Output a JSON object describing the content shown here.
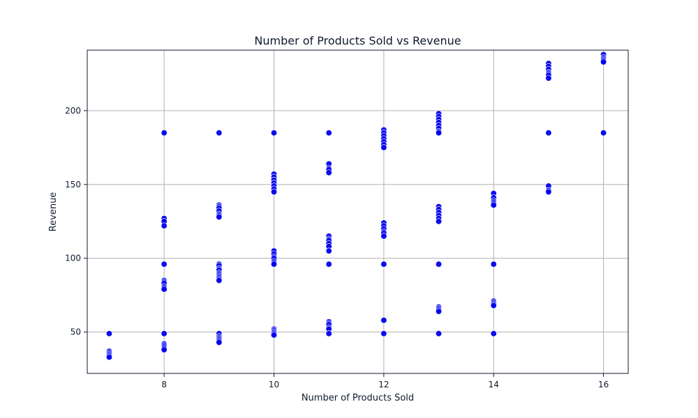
{
  "chart_data": {
    "type": "scatter",
    "title": "Number of Products Sold vs Revenue",
    "xlabel": "Number of Products Sold",
    "ylabel": "Revenue",
    "xlim": [
      6.6,
      16.45
    ],
    "ylim": [
      22,
      241
    ],
    "xticks": [
      8,
      10,
      12,
      14,
      16
    ],
    "yticks": [
      50,
      100,
      150,
      200
    ],
    "grid": true,
    "point_color": "#0000ee",
    "series": [
      {
        "name": "data",
        "points": [
          [
            7,
            49
          ],
          [
            7,
            37
          ],
          [
            7,
            36
          ],
          [
            7,
            35
          ],
          [
            7,
            34
          ],
          [
            7,
            33
          ],
          [
            8,
            185
          ],
          [
            8,
            127
          ],
          [
            8,
            125
          ],
          [
            8,
            122
          ],
          [
            8,
            96
          ],
          [
            8,
            85
          ],
          [
            8,
            84
          ],
          [
            8,
            83
          ],
          [
            8,
            81
          ],
          [
            8,
            80
          ],
          [
            8,
            79
          ],
          [
            8,
            49
          ],
          [
            8,
            42
          ],
          [
            8,
            41
          ],
          [
            8,
            40
          ],
          [
            8,
            39
          ],
          [
            8,
            38
          ],
          [
            9,
            185
          ],
          [
            9,
            136
          ],
          [
            9,
            135
          ],
          [
            9,
            134
          ],
          [
            9,
            132
          ],
          [
            9,
            130
          ],
          [
            9,
            129
          ],
          [
            9,
            128
          ],
          [
            9,
            96
          ],
          [
            9,
            95
          ],
          [
            9,
            93
          ],
          [
            9,
            92
          ],
          [
            9,
            90
          ],
          [
            9,
            89
          ],
          [
            9,
            88
          ],
          [
            9,
            87
          ],
          [
            9,
            86
          ],
          [
            9,
            85
          ],
          [
            9,
            49
          ],
          [
            9,
            47
          ],
          [
            9,
            46
          ],
          [
            9,
            45
          ],
          [
            9,
            44
          ],
          [
            9,
            43
          ],
          [
            10,
            185
          ],
          [
            10,
            157
          ],
          [
            10,
            155
          ],
          [
            10,
            153
          ],
          [
            10,
            151
          ],
          [
            10,
            149
          ],
          [
            10,
            147
          ],
          [
            10,
            145
          ],
          [
            10,
            105
          ],
          [
            10,
            103
          ],
          [
            10,
            101
          ],
          [
            10,
            100
          ],
          [
            10,
            98
          ],
          [
            10,
            97
          ],
          [
            10,
            96
          ],
          [
            10,
            52
          ],
          [
            10,
            51
          ],
          [
            10,
            50
          ],
          [
            10,
            49
          ],
          [
            10,
            48
          ],
          [
            11,
            185
          ],
          [
            11,
            164
          ],
          [
            11,
            161
          ],
          [
            11,
            160
          ],
          [
            11,
            158
          ],
          [
            11,
            115
          ],
          [
            11,
            113
          ],
          [
            11,
            112
          ],
          [
            11,
            110
          ],
          [
            11,
            108
          ],
          [
            11,
            105
          ],
          [
            11,
            96
          ],
          [
            11,
            57
          ],
          [
            11,
            56
          ],
          [
            11,
            55
          ],
          [
            11,
            53
          ],
          [
            11,
            52
          ],
          [
            11,
            49
          ],
          [
            12,
            187
          ],
          [
            12,
            185
          ],
          [
            12,
            183
          ],
          [
            12,
            181
          ],
          [
            12,
            179
          ],
          [
            12,
            177
          ],
          [
            12,
            175
          ],
          [
            12,
            124
          ],
          [
            12,
            122
          ],
          [
            12,
            120
          ],
          [
            12,
            118
          ],
          [
            12,
            117
          ],
          [
            12,
            115
          ],
          [
            12,
            96
          ],
          [
            12,
            58
          ],
          [
            12,
            49
          ],
          [
            13,
            198
          ],
          [
            13,
            196
          ],
          [
            13,
            194
          ],
          [
            13,
            192
          ],
          [
            13,
            190
          ],
          [
            13,
            188
          ],
          [
            13,
            186
          ],
          [
            13,
            185
          ],
          [
            13,
            135
          ],
          [
            13,
            133
          ],
          [
            13,
            131
          ],
          [
            13,
            129
          ],
          [
            13,
            127
          ],
          [
            13,
            125
          ],
          [
            13,
            96
          ],
          [
            13,
            67
          ],
          [
            13,
            66
          ],
          [
            13,
            65
          ],
          [
            13,
            64
          ],
          [
            13,
            49
          ],
          [
            14,
            144
          ],
          [
            14,
            141
          ],
          [
            14,
            139
          ],
          [
            14,
            138
          ],
          [
            14,
            137
          ],
          [
            14,
            136
          ],
          [
            14,
            96
          ],
          [
            14,
            71
          ],
          [
            14,
            70
          ],
          [
            14,
            69
          ],
          [
            14,
            68
          ],
          [
            14,
            49
          ],
          [
            15,
            232
          ],
          [
            15,
            230
          ],
          [
            15,
            228
          ],
          [
            15,
            226
          ],
          [
            15,
            225
          ],
          [
            15,
            224
          ],
          [
            15,
            222
          ],
          [
            15,
            185
          ],
          [
            15,
            149
          ],
          [
            15,
            146
          ],
          [
            15,
            145
          ],
          [
            16,
            238
          ],
          [
            16,
            236
          ],
          [
            16,
            235
          ],
          [
            16,
            234
          ],
          [
            16,
            233
          ],
          [
            16,
            185
          ]
        ]
      }
    ]
  }
}
